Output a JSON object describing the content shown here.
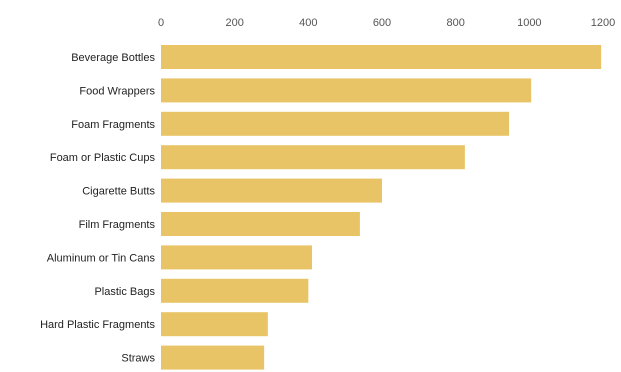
{
  "chart_data": {
    "type": "bar",
    "orientation": "horizontal",
    "title": "",
    "xlabel": "",
    "ylabel": "",
    "xlim": [
      0,
      1200
    ],
    "ticks": [
      0,
      200,
      400,
      600,
      800,
      1000,
      1200
    ],
    "tick_labels": [
      "0",
      "200",
      "400",
      "600",
      "800",
      "1000",
      "1200"
    ],
    "axis_position": "top",
    "grid": false,
    "categories": [
      "Beverage Bottles",
      "Food Wrappers",
      "Foam Fragments",
      "Foam or Plastic Cups",
      "Cigarette Butts",
      "Film Fragments",
      "Aluminum or Tin Cans",
      "Plastic Bags",
      "Hard Plastic Fragments",
      "Straws"
    ],
    "values": [
      1195,
      1005,
      945,
      825,
      600,
      540,
      410,
      400,
      290,
      280
    ],
    "bar_color": "#E8C466"
  }
}
